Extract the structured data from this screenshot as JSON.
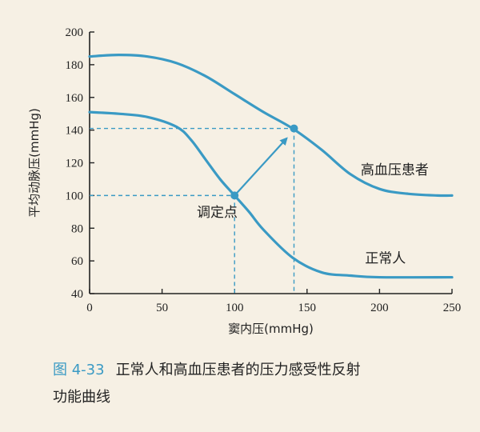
{
  "chart_data": {
    "type": "line",
    "xlabel": "窦内压(mmHg)",
    "ylabel": "平均动脉压(mmHg)",
    "xlim": [
      0,
      250
    ],
    "ylim": [
      40,
      200
    ],
    "xticks": [
      0,
      50,
      100,
      150,
      200,
      250
    ],
    "yticks": [
      40,
      60,
      80,
      100,
      120,
      140,
      160,
      180,
      200
    ],
    "grid": false,
    "series": [
      {
        "name": "高血压患者",
        "color": "#3a9ac4",
        "x": [
          0,
          20,
          40,
          60,
          80,
          100,
          120,
          140,
          160,
          180,
          200,
          220,
          240,
          250
        ],
        "y": [
          185,
          186,
          185,
          181,
          173,
          162,
          151,
          141,
          128,
          113,
          104,
          101,
          100,
          100
        ]
      },
      {
        "name": "正常人",
        "color": "#3a9ac4",
        "x": [
          0,
          20,
          40,
          60,
          70,
          80,
          90,
          100,
          110,
          120,
          140,
          160,
          180,
          200,
          250
        ],
        "y": [
          151,
          150,
          148,
          142,
          134,
          122,
          110,
          100,
          90,
          79,
          62,
          53,
          51,
          50,
          50
        ]
      }
    ],
    "points": [
      {
        "x": 100,
        "y": 100,
        "color": "#3a9ac4"
      },
      {
        "x": 141,
        "y": 141,
        "color": "#3a9ac4"
      }
    ],
    "annotations": {
      "set_point_label": "调定点",
      "arrow": {
        "from": [
          100,
          100
        ],
        "to": [
          136,
          135
        ]
      }
    }
  },
  "caption": {
    "figure_number": "图 4-33",
    "line1": "正常人和高血压患者的压力感受性反射",
    "line2": "功能曲线"
  }
}
